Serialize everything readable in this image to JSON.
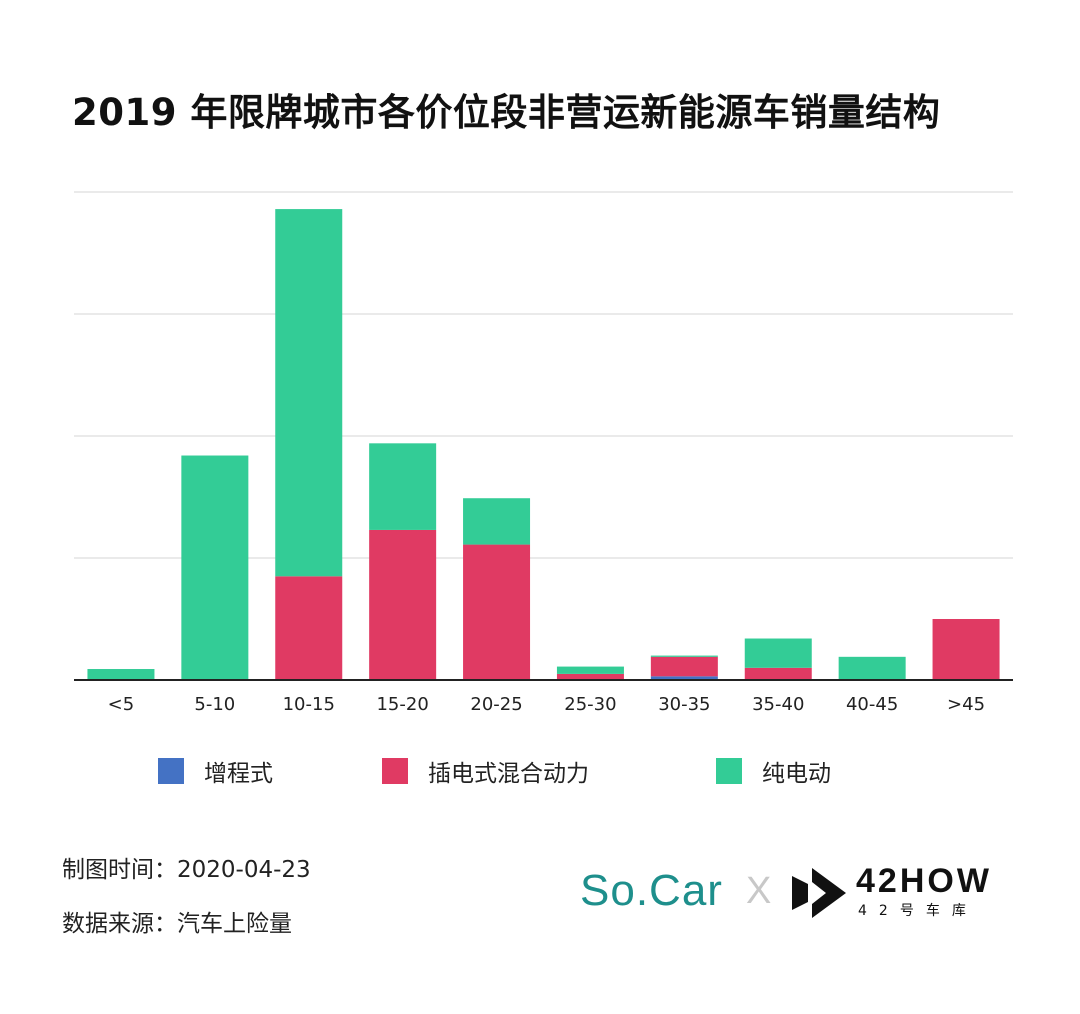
{
  "title": "2019 年限牌城市各价位段非营运新能源车销量结构",
  "chart_data": {
    "type": "bar",
    "stacked": true,
    "categories": [
      "<5",
      "5-10",
      "10-15",
      "15-20",
      "20-25",
      "25-30",
      "30-35",
      "35-40",
      "40-45",
      ">45"
    ],
    "series": [
      {
        "name": "增程式",
        "color": "#4472c4",
        "values": [
          0,
          0,
          0,
          0,
          0,
          0,
          0.3,
          0,
          0,
          0
        ]
      },
      {
        "name": "插电式混合动力",
        "color": "#e03a63",
        "values": [
          0,
          0,
          8.5,
          12.3,
          11.1,
          0.5,
          1.6,
          1.0,
          0,
          5.0
        ]
      },
      {
        "name": "纯电动",
        "color": "#33cc96",
        "values": [
          0.9,
          18.4,
          30.1,
          7.1,
          3.8,
          0.6,
          0.1,
          2.4,
          1.9,
          0
        ]
      }
    ],
    "ylim": [
      0,
      40
    ],
    "y_ticks_labeled": false,
    "grid": true,
    "legend_position": "bottom"
  },
  "footer": {
    "date_line": "制图时间：2020-04-23",
    "source_line": "数据来源：汽车上险量"
  },
  "logos": {
    "socar": "So.Car",
    "separator": "X",
    "partner_name": "42HOW",
    "partner_sub": "42号车库"
  }
}
